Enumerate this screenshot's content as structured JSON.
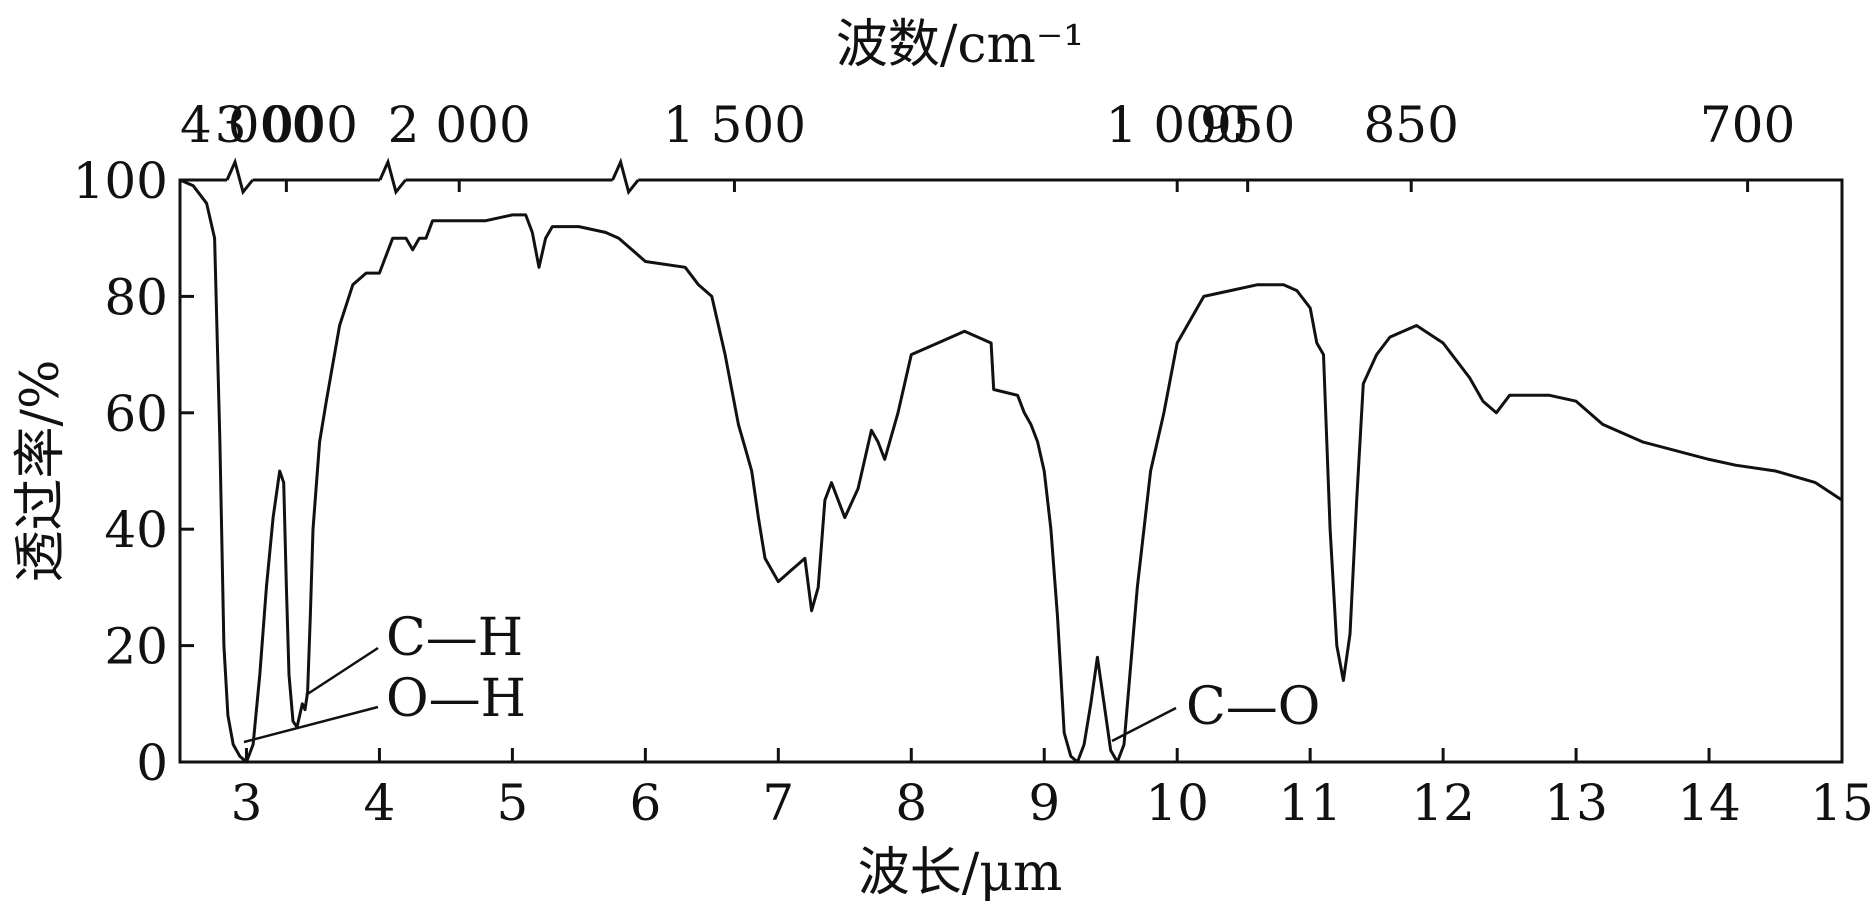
{
  "chart_data": {
    "type": "line",
    "title": "",
    "xlabel": "波长/μm",
    "ylabel": "透过率/%",
    "top_axis_label": "波数/cm⁻¹",
    "xlim": [
      2.5,
      15
    ],
    "ylim": [
      0,
      100
    ],
    "x_ticks": [
      3,
      4,
      5,
      6,
      7,
      8,
      9,
      10,
      11,
      12,
      13,
      14,
      15
    ],
    "x_tick_labels": [
      "3",
      "4",
      "5",
      "6",
      "7",
      "8",
      "9",
      "10",
      "11",
      "12",
      "13",
      "14",
      "15"
    ],
    "y_ticks": [
      0,
      20,
      40,
      60,
      80,
      100
    ],
    "y_tick_labels": [
      "0",
      "20",
      "40",
      "60",
      "80",
      "100"
    ],
    "top_ticks": [
      {
        "x": 2.5,
        "label": "4 000"
      },
      {
        "x": 3.3,
        "label": "3 000"
      },
      {
        "x": 4.6,
        "label": "2 000"
      },
      {
        "x": 6.67,
        "label": "1 500"
      },
      {
        "x": 10.0,
        "label": "1 000"
      },
      {
        "x": 10.53,
        "label": "950"
      },
      {
        "x": 11.76,
        "label": "850"
      },
      {
        "x": 14.29,
        "label": "700"
      }
    ],
    "top_axis_breaks": [
      2.95,
      4.1,
      5.85
    ],
    "grid": false,
    "series": [
      {
        "x": [
          2.5,
          2.6,
          2.7,
          2.76,
          2.8,
          2.83,
          2.86,
          2.9,
          2.95,
          3.0,
          3.05,
          3.1,
          3.15,
          3.2,
          3.25,
          3.28,
          3.3,
          3.32,
          3.35,
          3.38,
          3.4,
          3.42,
          3.44,
          3.46,
          3.48,
          3.5,
          3.55,
          3.6,
          3.7,
          3.8,
          3.9,
          4.0,
          4.1,
          4.2,
          4.25,
          4.3,
          4.35,
          4.4,
          4.6,
          4.8,
          5.0,
          5.1,
          5.15,
          5.2,
          5.25,
          5.3,
          5.5,
          5.7,
          5.8,
          6.0,
          6.3,
          6.4,
          6.5,
          6.6,
          6.7,
          6.75,
          6.8,
          6.85,
          6.9,
          7.0,
          7.05,
          7.1,
          7.15,
          7.2,
          7.25,
          7.3,
          7.35,
          7.4,
          7.5,
          7.6,
          7.7,
          7.75,
          7.8,
          7.9,
          8.0,
          8.2,
          8.4,
          8.6,
          8.62,
          8.8,
          8.85,
          8.9,
          8.95,
          9.0,
          9.05,
          9.1,
          9.15,
          9.2,
          9.25,
          9.3,
          9.35,
          9.4,
          9.45,
          9.5,
          9.55,
          9.6,
          9.7,
          9.8,
          9.9,
          10.0,
          10.1,
          10.2,
          10.4,
          10.6,
          10.8,
          10.9,
          11.0,
          11.05,
          11.1,
          11.15,
          11.2,
          11.25,
          11.3,
          11.35,
          11.4,
          11.5,
          11.6,
          11.8,
          12.0,
          12.2,
          12.3,
          12.4,
          12.5,
          12.6,
          12.8,
          13.0,
          13.2,
          13.5,
          14.0,
          14.2,
          14.5,
          14.8,
          15.0
        ],
        "y": [
          100,
          99,
          96,
          90,
          55,
          20,
          8,
          3,
          1,
          0,
          3,
          15,
          30,
          42,
          50,
          48,
          30,
          15,
          7,
          6,
          8,
          10,
          9,
          12,
          25,
          40,
          55,
          62,
          75,
          82,
          84,
          84,
          90,
          90,
          88,
          90,
          90,
          93,
          93,
          93,
          94,
          94,
          91,
          85,
          90,
          92,
          92,
          91,
          90,
          86,
          85,
          82,
          80,
          70,
          58,
          54,
          50,
          42,
          35,
          31,
          32,
          33,
          34,
          35,
          26,
          30,
          45,
          48,
          42,
          47,
          57,
          55,
          52,
          60,
          70,
          72,
          74,
          72,
          64,
          63,
          60,
          58,
          55,
          50,
          40,
          25,
          5,
          1,
          0,
          3,
          10,
          18,
          10,
          2,
          0,
          3,
          30,
          50,
          60,
          72,
          76,
          80,
          81,
          82,
          82,
          81,
          78,
          72,
          70,
          40,
          20,
          14,
          22,
          45,
          65,
          70,
          73,
          75,
          72,
          66,
          62,
          60,
          63,
          63,
          63,
          62,
          58,
          55,
          52,
          51,
          50,
          48,
          45
        ]
      }
    ],
    "annotations": [
      "C—H",
      "O—H",
      "C—O"
    ]
  }
}
